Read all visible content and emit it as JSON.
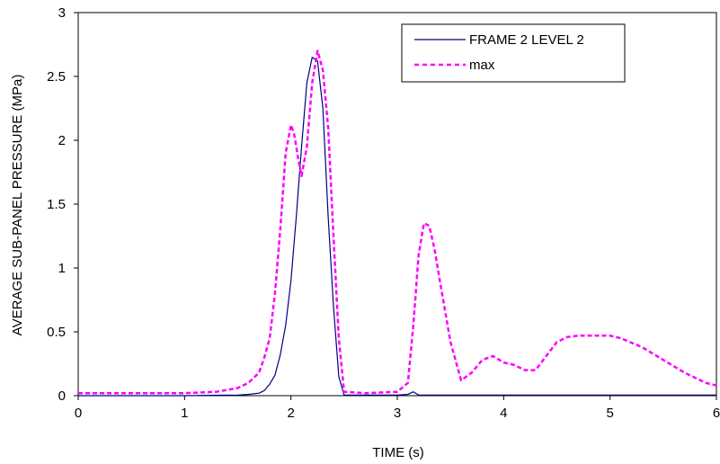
{
  "chart_data": {
    "type": "line",
    "title": "",
    "xlabel": "TIME (s)",
    "ylabel": "AVERAGE SUB-PANEL PRESSURE (MPa)",
    "xlim": [
      0,
      6
    ],
    "ylim": [
      0,
      3
    ],
    "x_ticks": [
      "0",
      "1",
      "2",
      "3",
      "4",
      "5",
      "6"
    ],
    "y_ticks": [
      "0",
      "0.5",
      "1",
      "1.5",
      "2",
      "2.5",
      "3"
    ],
    "grid": false,
    "legend_position": "top-right",
    "series": [
      {
        "name": "FRAME 2 LEVEL 2",
        "color": "#000080",
        "style": "solid",
        "x": [
          0,
          1.0,
          1.5,
          1.6,
          1.7,
          1.75,
          1.8,
          1.85,
          1.9,
          1.95,
          2.0,
          2.05,
          2.1,
          2.15,
          2.2,
          2.25,
          2.3,
          2.35,
          2.4,
          2.45,
          2.5,
          3.0,
          3.1,
          3.15,
          3.2,
          3.3,
          4.0,
          5.0,
          6.0
        ],
        "y": [
          0,
          0,
          0.005,
          0.01,
          0.02,
          0.04,
          0.09,
          0.16,
          0.32,
          0.55,
          0.9,
          1.4,
          1.95,
          2.45,
          2.65,
          2.62,
          2.25,
          1.4,
          0.7,
          0.15,
          0.005,
          0.005,
          0.01,
          0.03,
          0.005,
          0.005,
          0.005,
          0.005,
          0.005
        ]
      },
      {
        "name": "max",
        "color": "#ff00ff",
        "style": "dashed",
        "x": [
          0,
          0.5,
          1.0,
          1.3,
          1.5,
          1.6,
          1.7,
          1.75,
          1.8,
          1.85,
          1.9,
          1.95,
          2.0,
          2.03,
          2.07,
          2.1,
          2.15,
          2.2,
          2.25,
          2.3,
          2.35,
          2.4,
          2.45,
          2.5,
          2.7,
          3.0,
          3.1,
          3.15,
          3.2,
          3.25,
          3.3,
          3.35,
          3.4,
          3.5,
          3.6,
          3.7,
          3.8,
          3.9,
          4.0,
          4.1,
          4.2,
          4.3,
          4.5,
          4.6,
          4.7,
          4.8,
          4.9,
          5.0,
          5.1,
          5.3,
          5.5,
          5.7,
          5.9,
          6.0
        ],
        "y": [
          0.02,
          0.02,
          0.02,
          0.03,
          0.06,
          0.1,
          0.18,
          0.3,
          0.45,
          0.8,
          1.3,
          1.9,
          2.12,
          2.05,
          1.85,
          1.72,
          1.95,
          2.45,
          2.7,
          2.55,
          2.1,
          1.25,
          0.45,
          0.03,
          0.02,
          0.03,
          0.1,
          0.55,
          1.1,
          1.35,
          1.33,
          1.15,
          0.9,
          0.42,
          0.12,
          0.18,
          0.28,
          0.31,
          0.26,
          0.24,
          0.2,
          0.2,
          0.42,
          0.46,
          0.47,
          0.47,
          0.47,
          0.47,
          0.45,
          0.38,
          0.28,
          0.18,
          0.1,
          0.08
        ]
      }
    ]
  }
}
